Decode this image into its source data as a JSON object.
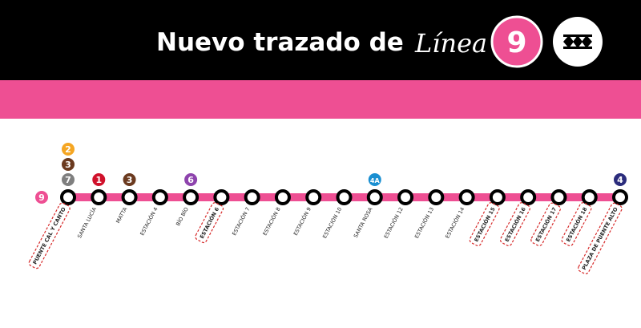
{
  "header": {
    "title": "Nuevo trazado de",
    "line_word": "Línea",
    "line_number": "9"
  },
  "line": {
    "label": "9",
    "color": "#ee4f93",
    "stations": [
      {
        "name": "PUENTE CAL Y CANTO",
        "highlighted": true,
        "connections": [
          {
            "line": "7",
            "color": "#7f7f7f"
          },
          {
            "line": "3",
            "color": "#6b3a1f"
          },
          {
            "line": "2",
            "color": "#f5a623"
          }
        ]
      },
      {
        "name": "SANTA LUCÍA",
        "highlighted": false,
        "connections": [
          {
            "line": "1",
            "color": "#d0112b"
          }
        ]
      },
      {
        "name": "MATTA",
        "highlighted": false,
        "connections": [
          {
            "line": "3",
            "color": "#6b3a1f"
          }
        ]
      },
      {
        "name": "ESTACIÓN 4",
        "highlighted": false,
        "connections": []
      },
      {
        "name": "BÍO BÍO",
        "highlighted": false,
        "connections": [
          {
            "line": "6",
            "color": "#8e44ad"
          }
        ]
      },
      {
        "name": "ESTACIÓN 6",
        "highlighted": true,
        "connections": []
      },
      {
        "name": "ESTACIÓN 7",
        "highlighted": false,
        "connections": []
      },
      {
        "name": "ESTACIÓN 8",
        "highlighted": false,
        "connections": []
      },
      {
        "name": "ESTACIÓN 9",
        "highlighted": false,
        "connections": []
      },
      {
        "name": "ESTACIÓN 10",
        "highlighted": false,
        "connections": []
      },
      {
        "name": "SANTA ROSA",
        "highlighted": false,
        "connections": [
          {
            "line": "4A",
            "color": "#1a8fd1"
          }
        ]
      },
      {
        "name": "ESTACIÓN 12",
        "highlighted": false,
        "connections": []
      },
      {
        "name": "ESTACIÓN 13",
        "highlighted": false,
        "connections": []
      },
      {
        "name": "ESTACIÓN 14",
        "highlighted": false,
        "connections": []
      },
      {
        "name": "ESTACIÓN 15",
        "highlighted": true,
        "connections": []
      },
      {
        "name": "ESTACIÓN 16",
        "highlighted": true,
        "connections": []
      },
      {
        "name": "ESTACIÓN 17",
        "highlighted": true,
        "connections": []
      },
      {
        "name": "ESTACIÓN 18",
        "highlighted": true,
        "connections": []
      },
      {
        "name": "PLAZA DE PUENTE ALTO",
        "highlighted": true,
        "connections": [
          {
            "line": "4",
            "color": "#2b2c7c"
          }
        ]
      }
    ]
  }
}
